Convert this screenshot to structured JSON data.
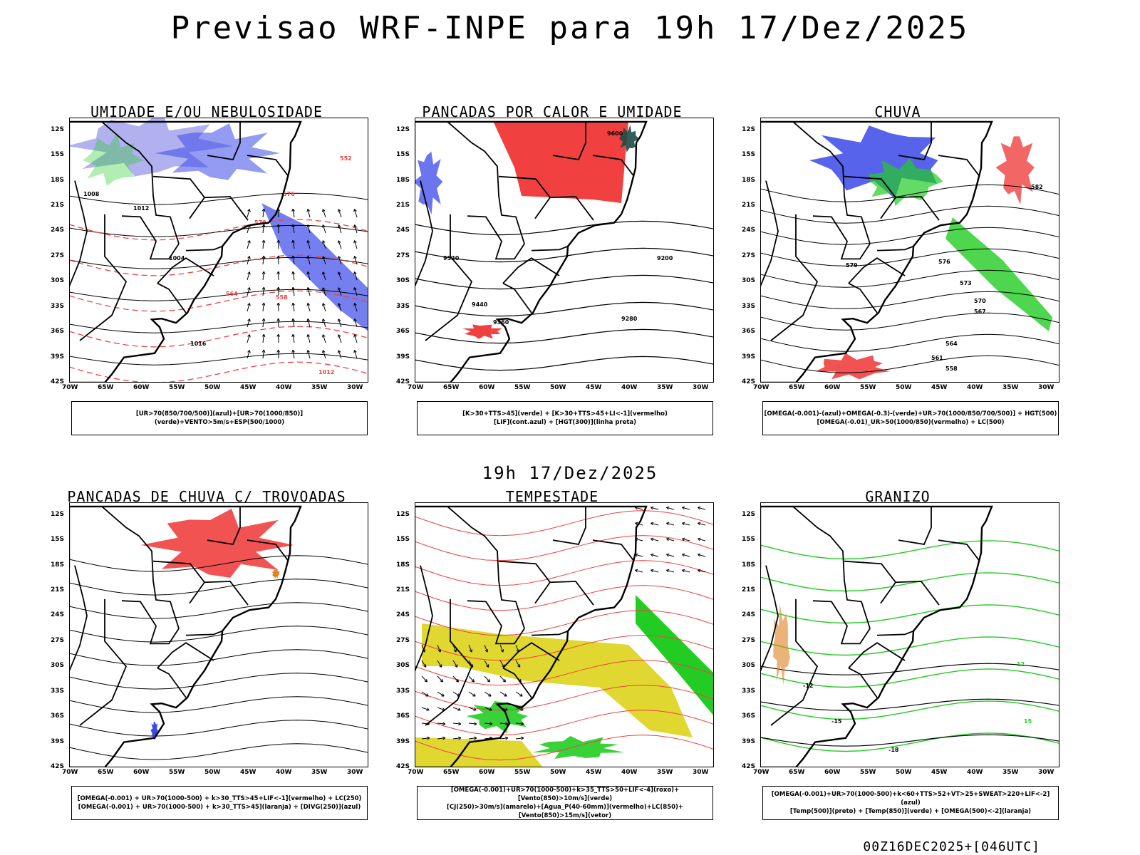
{
  "header": {
    "title": "Previsao WRF-INPE  para 19h 17/Dez/2025",
    "mid_title": "19h 17/Dez/2025",
    "footer": "00Z16DEC2025+[046UTC]"
  },
  "axes": {
    "lat_labels": [
      "12S",
      "15S",
      "18S",
      "21S",
      "24S",
      "27S",
      "30S",
      "33S",
      "36S",
      "39S",
      "42S"
    ],
    "lon_labels": [
      "70W",
      "65W",
      "60W",
      "55W",
      "50W",
      "45W",
      "40W",
      "35W",
      "30W"
    ]
  },
  "panels": [
    {
      "id": "umidade",
      "title": "UMIDADE E/OU NEBULOSIDADE",
      "legend": [
        "[UR>70(850/700/500)](azul)+[UR>70(1000/850)](verde)+VENTO>5m/s+ESP(500/1000)"
      ],
      "contour_labels": [
        "1012",
        "1008",
        "1004",
        "1016",
        "1012",
        "576",
        "570",
        "564",
        "558",
        "552"
      ]
    },
    {
      "id": "pancadas-calor",
      "title": "PANCADAS POR CALOR E UMIDADE",
      "legend": [
        "[K>30+TTS>45](verde) + [K>30+TTS>45+LI<-1](vermelho)",
        "[LIF](cont.azul) + [HGT(300)](linha preta)"
      ],
      "contour_labels": [
        "9600",
        "9520",
        "9440",
        "9360",
        "9280",
        "9200"
      ]
    },
    {
      "id": "chuva",
      "title": "CHUVA",
      "legend": [
        "[OMEGA(-0.001)-(azul)+OMEGA(-0.3)-(verde)+UR>70(1000/850/700/500)] + HGT(500)",
        "[OMEGA(-0.01)_UR>50(1000/850)(vermelho) + LC(500)"
      ],
      "contour_labels": [
        "582",
        "579",
        "576",
        "573",
        "570",
        "567",
        "564",
        "561",
        "558"
      ]
    },
    {
      "id": "trovoadas",
      "title": "PANCADAS DE CHUVA C/ TROVOADAS",
      "legend": [
        "[OMEGA(-0.001) + UR>70(1000-500) + k>30_TTS>45+LIF<-1](vermelho) + LC(250)",
        "[OMEGA(-0.001) + UR>70(1000-500) + k>30_TTS>45](laranja) + [DIVG(250)](azul)"
      ],
      "contour_labels": []
    },
    {
      "id": "tempestade",
      "title": "TEMPESTADE",
      "legend": [
        "[OMEGA(-0.001)+UR>70(1000-500)+k>35_TTS>50+LIF<-4](roxo)+[Vento(850)>10m/s](verde)",
        "[CJ(250)>30m/s](amarelo)+[Agua_P(40-60mm)](vermelho)+LC(850)+[Vento(850)>15m/s](vetor)"
      ],
      "contour_labels": []
    },
    {
      "id": "granizo",
      "title": "GRANIZO",
      "legend": [
        "[OMEGA(-0.001)+UR>70(1000-500)+k<60+TTS>52+VT>25+SWEAT>220+LIF<-2](azul)",
        "[Temp(500)](preto) + [Temp(850)](verde) + [OMEGA(500)<-2](laranja)"
      ],
      "contour_labels": [
        "-12",
        "-15",
        "-18",
        "12",
        "15"
      ]
    }
  ],
  "colors": {
    "red": "#f04040",
    "blue": "#3a48e8",
    "lightblue": "#a8a8ee",
    "green": "#22cc22",
    "darkteal": "#1e4a46",
    "yellow": "#e0d830",
    "orange": "#e08020"
  }
}
